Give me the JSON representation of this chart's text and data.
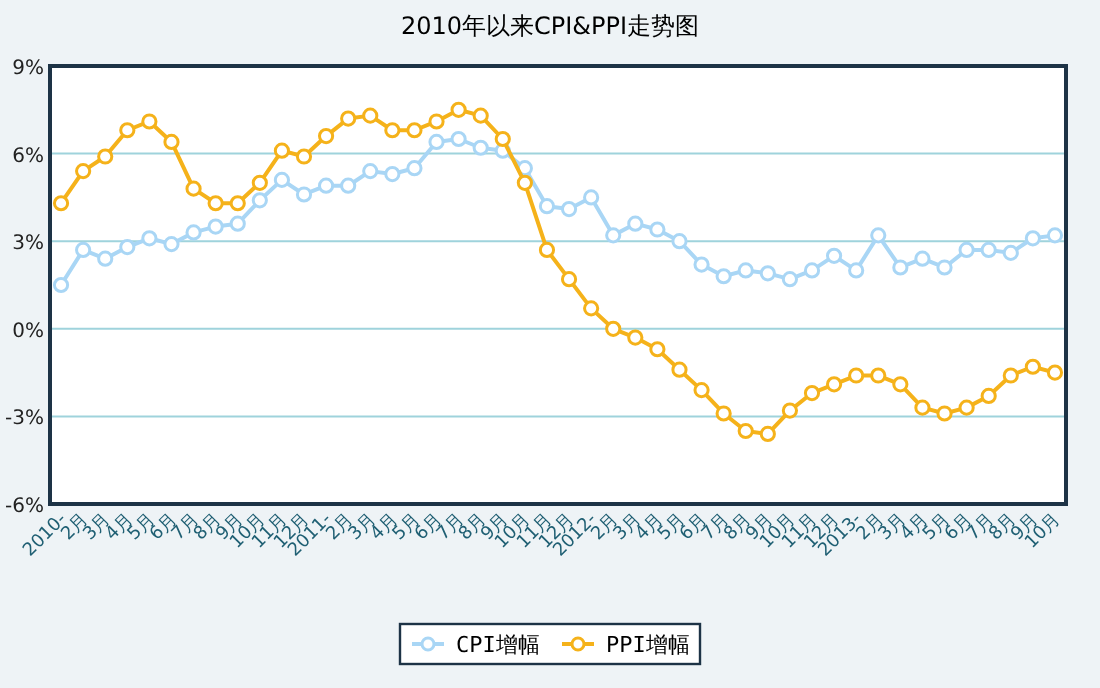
{
  "chart_data": {
    "type": "line",
    "title": "2010年以来CPI&PPI走势图",
    "categories": [
      "2010-",
      "2月",
      "3月",
      "4月",
      "5月",
      "6月",
      "7月",
      "8月",
      "9月",
      "10月",
      "11月",
      "12月",
      "2011-",
      "2月",
      "3月",
      "4月",
      "5月",
      "6月",
      "7月",
      "8月",
      "9月",
      "10月",
      "11月",
      "12月",
      "2012-",
      "2月",
      "3月",
      "4月",
      "5月",
      "6月",
      "7月",
      "8月",
      "9月",
      "10月",
      "11月",
      "12月",
      "2013-",
      "2月",
      "3月",
      "4月",
      "5月",
      "6月",
      "7月",
      "8月",
      "9月",
      "10月"
    ],
    "series": [
      {
        "name": "CPI增幅",
        "color": "#a9d6f5",
        "values": [
          1.5,
          2.7,
          2.4,
          2.8,
          3.1,
          2.9,
          3.3,
          3.5,
          3.6,
          4.4,
          5.1,
          4.6,
          4.9,
          4.9,
          5.4,
          5.3,
          5.5,
          6.4,
          6.5,
          6.2,
          6.1,
          5.5,
          4.2,
          4.1,
          4.5,
          3.2,
          3.6,
          3.4,
          3.0,
          2.2,
          1.8,
          2.0,
          1.9,
          1.7,
          2.0,
          2.5,
          2.0,
          3.2,
          2.1,
          2.4,
          2.1,
          2.7,
          2.7,
          2.6,
          3.1,
          3.2
        ]
      },
      {
        "name": "PPI增幅",
        "color": "#f5b21a",
        "values": [
          4.3,
          5.4,
          5.9,
          6.8,
          7.1,
          6.4,
          4.8,
          4.3,
          4.3,
          5.0,
          6.1,
          5.9,
          6.6,
          7.2,
          7.3,
          6.8,
          6.8,
          7.1,
          7.5,
          7.3,
          6.5,
          5.0,
          2.7,
          1.7,
          0.7,
          0.0,
          -0.3,
          -0.7,
          -1.4,
          -2.1,
          -2.9,
          -3.5,
          -3.6,
          -2.8,
          -2.2,
          -1.9,
          -1.6,
          -1.6,
          -1.9,
          -2.7,
          -2.9,
          -2.7,
          -2.3,
          -1.6,
          -1.3,
          -1.5
        ]
      }
    ],
    "ylim": [
      -6,
      9
    ],
    "yticks": [
      {
        "value": -6,
        "label": "-6%"
      },
      {
        "value": -3,
        "label": "-3%"
      },
      {
        "value": 0,
        "label": "0%"
      },
      {
        "value": 3,
        "label": "3%"
      },
      {
        "value": 6,
        "label": "6%"
      },
      {
        "value": 9,
        "label": "9%"
      }
    ],
    "grid": "y",
    "legend": "bottom",
    "marker": "circle",
    "line_style": "solid"
  }
}
